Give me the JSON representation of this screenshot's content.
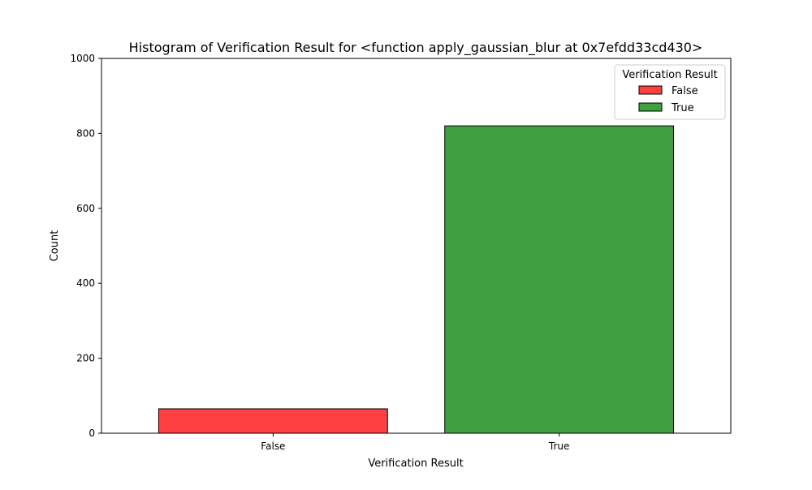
{
  "chart_data": {
    "type": "bar",
    "title": "Histogram of Verification Result for <function apply_gaussian_blur at 0x7efdd33cd430>",
    "xlabel": "Verification Result",
    "ylabel": "Count",
    "categories": [
      "False",
      "True"
    ],
    "values": [
      65,
      820
    ],
    "colors": [
      "#ff4040",
      "#40a040"
    ],
    "ylim": [
      0,
      1000
    ],
    "yticks": [
      0,
      200,
      400,
      600,
      800,
      1000
    ],
    "grid": false,
    "legend": {
      "title": "Verification Result",
      "placement": "top-right",
      "entries": [
        {
          "label": "False",
          "color": "#ff4040"
        },
        {
          "label": "True",
          "color": "#40a040"
        }
      ]
    }
  }
}
